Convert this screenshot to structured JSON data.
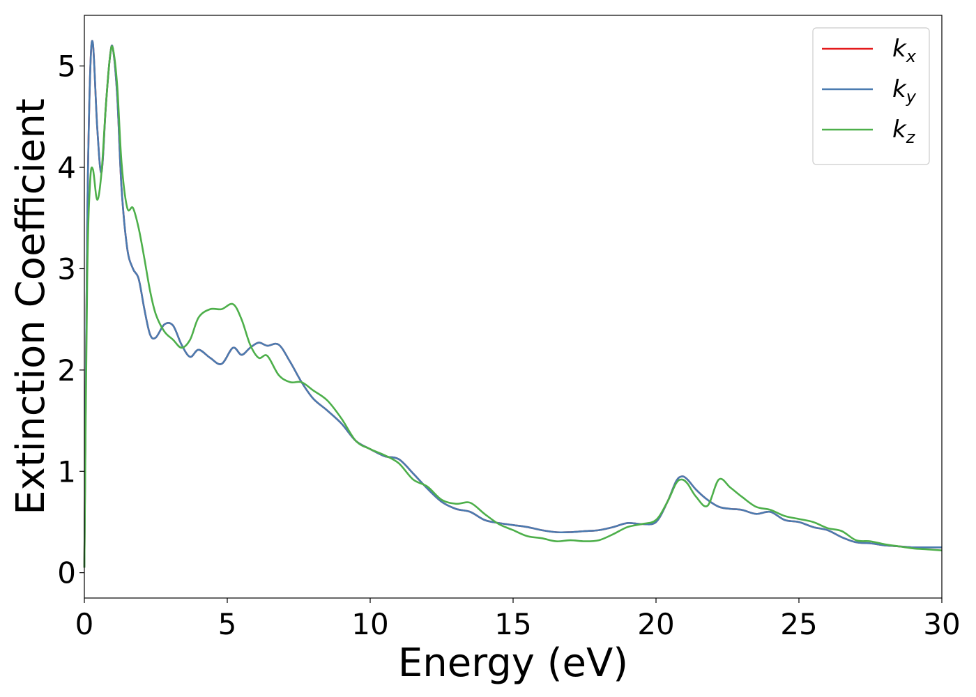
{
  "chart_data": {
    "type": "line",
    "title": "",
    "xlabel": "Energy (eV)",
    "ylabel": "Extinction Coefficient",
    "xlim": [
      0,
      30
    ],
    "ylim": [
      -0.25,
      5.5
    ],
    "xticks": [
      0,
      5,
      10,
      15,
      20,
      25,
      30
    ],
    "yticks": [
      0,
      1,
      2,
      3,
      4,
      5
    ],
    "grid": false,
    "legend_position": "top-right",
    "series": [
      {
        "name": "kx",
        "base": "k",
        "sub": "x",
        "color": "#e41a1c",
        "x": [
          0,
          0.1,
          0.2,
          0.3,
          0.45,
          0.6,
          0.75,
          0.9,
          1.0,
          1.15,
          1.3,
          1.5,
          1.7,
          1.9,
          2.1,
          2.3,
          2.5,
          2.8,
          3.1,
          3.4,
          3.7,
          4.0,
          4.4,
          4.8,
          5.2,
          5.5,
          5.8,
          6.1,
          6.4,
          6.8,
          7.2,
          7.6,
          8.0,
          8.5,
          9.0,
          9.5,
          10.0,
          10.5,
          11.0,
          11.5,
          12.0,
          12.5,
          13.0,
          13.5,
          14.0,
          14.5,
          15.0,
          15.5,
          16.0,
          16.5,
          17.0,
          17.5,
          18.0,
          18.5,
          19.0,
          19.5,
          20.0,
          20.4,
          20.7,
          20.9,
          21.1,
          21.4,
          21.8,
          22.2,
          22.6,
          23.0,
          23.5,
          24.0,
          24.5,
          25.0,
          25.5,
          26.0,
          26.5,
          27.0,
          27.5,
          28.0,
          28.5,
          29.0,
          29.5,
          30.0
        ],
        "values": [
          0.05,
          3.4,
          4.9,
          5.22,
          4.4,
          3.95,
          4.6,
          5.1,
          5.17,
          4.7,
          3.8,
          3.2,
          3.0,
          2.9,
          2.6,
          2.35,
          2.32,
          2.45,
          2.44,
          2.25,
          2.13,
          2.2,
          2.12,
          2.06,
          2.22,
          2.15,
          2.22,
          2.27,
          2.24,
          2.25,
          2.08,
          1.88,
          1.72,
          1.6,
          1.47,
          1.3,
          1.22,
          1.15,
          1.12,
          0.98,
          0.83,
          0.7,
          0.63,
          0.6,
          0.52,
          0.49,
          0.47,
          0.45,
          0.42,
          0.4,
          0.4,
          0.41,
          0.42,
          0.45,
          0.49,
          0.48,
          0.5,
          0.7,
          0.9,
          0.95,
          0.92,
          0.82,
          0.72,
          0.65,
          0.63,
          0.62,
          0.58,
          0.6,
          0.52,
          0.5,
          0.45,
          0.42,
          0.35,
          0.3,
          0.29,
          0.27,
          0.26,
          0.25,
          0.25,
          0.25
        ]
      },
      {
        "name": "ky",
        "base": "k",
        "sub": "y",
        "color": "#4a7bb0",
        "x": [
          0,
          0.1,
          0.2,
          0.3,
          0.45,
          0.6,
          0.75,
          0.9,
          1.0,
          1.15,
          1.3,
          1.5,
          1.7,
          1.9,
          2.1,
          2.3,
          2.5,
          2.8,
          3.1,
          3.4,
          3.7,
          4.0,
          4.4,
          4.8,
          5.2,
          5.5,
          5.8,
          6.1,
          6.4,
          6.8,
          7.2,
          7.6,
          8.0,
          8.5,
          9.0,
          9.5,
          10.0,
          10.5,
          11.0,
          11.5,
          12.0,
          12.5,
          13.0,
          13.5,
          14.0,
          14.5,
          15.0,
          15.5,
          16.0,
          16.5,
          17.0,
          17.5,
          18.0,
          18.5,
          19.0,
          19.5,
          20.0,
          20.4,
          20.7,
          20.9,
          21.1,
          21.4,
          21.8,
          22.2,
          22.6,
          23.0,
          23.5,
          24.0,
          24.5,
          25.0,
          25.5,
          26.0,
          26.5,
          27.0,
          27.5,
          28.0,
          28.5,
          29.0,
          29.5,
          30.0
        ],
        "values": [
          0.05,
          3.4,
          4.9,
          5.22,
          4.4,
          3.95,
          4.6,
          5.1,
          5.17,
          4.7,
          3.8,
          3.2,
          3.0,
          2.9,
          2.6,
          2.35,
          2.32,
          2.45,
          2.44,
          2.25,
          2.13,
          2.2,
          2.12,
          2.06,
          2.22,
          2.15,
          2.22,
          2.27,
          2.24,
          2.25,
          2.08,
          1.88,
          1.72,
          1.6,
          1.47,
          1.3,
          1.22,
          1.15,
          1.12,
          0.98,
          0.83,
          0.7,
          0.63,
          0.6,
          0.52,
          0.49,
          0.47,
          0.45,
          0.42,
          0.4,
          0.4,
          0.41,
          0.42,
          0.45,
          0.49,
          0.48,
          0.5,
          0.7,
          0.9,
          0.95,
          0.92,
          0.82,
          0.72,
          0.65,
          0.63,
          0.62,
          0.58,
          0.6,
          0.52,
          0.5,
          0.45,
          0.42,
          0.35,
          0.3,
          0.29,
          0.27,
          0.26,
          0.25,
          0.25,
          0.25
        ]
      },
      {
        "name": "kz",
        "base": "k",
        "sub": "z",
        "color": "#4daf4a",
        "x": [
          0,
          0.1,
          0.2,
          0.3,
          0.45,
          0.6,
          0.75,
          0.9,
          1.0,
          1.15,
          1.3,
          1.5,
          1.7,
          1.9,
          2.1,
          2.3,
          2.5,
          2.8,
          3.1,
          3.4,
          3.7,
          4.0,
          4.4,
          4.8,
          5.2,
          5.5,
          5.8,
          6.1,
          6.4,
          6.8,
          7.2,
          7.6,
          8.0,
          8.5,
          9.0,
          9.5,
          10.0,
          10.5,
          11.0,
          11.5,
          12.0,
          12.5,
          13.0,
          13.5,
          14.0,
          14.5,
          15.0,
          15.5,
          16.0,
          16.5,
          17.0,
          17.5,
          18.0,
          18.5,
          19.0,
          19.5,
          20.0,
          20.4,
          20.7,
          20.9,
          21.1,
          21.4,
          21.8,
          22.2,
          22.6,
          23.0,
          23.5,
          24.0,
          24.5,
          25.0,
          25.5,
          26.0,
          26.5,
          27.0,
          27.5,
          28.0,
          28.5,
          29.0,
          29.5,
          30.0
        ],
        "values": [
          0.05,
          2.9,
          3.85,
          3.98,
          3.68,
          3.95,
          4.6,
          5.1,
          5.17,
          4.8,
          4.05,
          3.6,
          3.6,
          3.4,
          3.1,
          2.78,
          2.55,
          2.38,
          2.3,
          2.22,
          2.3,
          2.52,
          2.6,
          2.6,
          2.65,
          2.5,
          2.25,
          2.12,
          2.14,
          1.95,
          1.88,
          1.88,
          1.8,
          1.7,
          1.52,
          1.3,
          1.22,
          1.16,
          1.08,
          0.92,
          0.85,
          0.72,
          0.68,
          0.69,
          0.58,
          0.48,
          0.42,
          0.36,
          0.34,
          0.31,
          0.32,
          0.31,
          0.32,
          0.38,
          0.45,
          0.48,
          0.52,
          0.7,
          0.88,
          0.92,
          0.88,
          0.75,
          0.66,
          0.92,
          0.84,
          0.75,
          0.65,
          0.62,
          0.56,
          0.53,
          0.5,
          0.44,
          0.41,
          0.32,
          0.31,
          0.28,
          0.26,
          0.24,
          0.23,
          0.22
        ]
      }
    ]
  }
}
